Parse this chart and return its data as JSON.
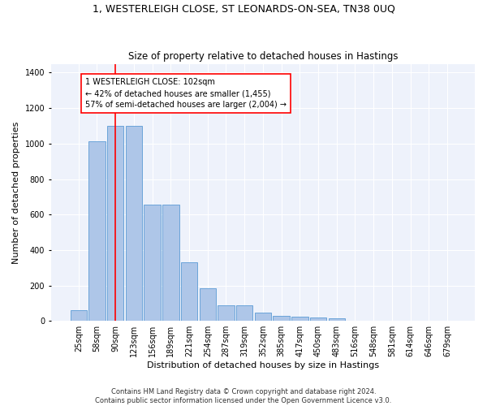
{
  "title": "1, WESTERLEIGH CLOSE, ST LEONARDS-ON-SEA, TN38 0UQ",
  "subtitle": "Size of property relative to detached houses in Hastings",
  "xlabel": "Distribution of detached houses by size in Hastings",
  "ylabel": "Number of detached properties",
  "categories": [
    "25sqm",
    "58sqm",
    "90sqm",
    "123sqm",
    "156sqm",
    "189sqm",
    "221sqm",
    "254sqm",
    "287sqm",
    "319sqm",
    "352sqm",
    "385sqm",
    "417sqm",
    "450sqm",
    "483sqm",
    "516sqm",
    "548sqm",
    "581sqm",
    "614sqm",
    "646sqm",
    "679sqm"
  ],
  "values": [
    60,
    1015,
    1100,
    1100,
    655,
    655,
    330,
    185,
    90,
    90,
    45,
    28,
    25,
    20,
    15,
    0,
    0,
    0,
    0,
    0,
    0
  ],
  "bar_color": "#aec6e8",
  "bar_edgecolor": "#5b9bd5",
  "property_line_x": 2.0,
  "property_line_color": "red",
  "annotation_text": "1 WESTERLEIGH CLOSE: 102sqm\n← 42% of detached houses are smaller (1,455)\n57% of semi-detached houses are larger (2,004) →",
  "annotation_box_color": "white",
  "annotation_box_edgecolor": "red",
  "ylim": [
    0,
    1450
  ],
  "yticks": [
    0,
    200,
    400,
    600,
    800,
    1000,
    1200,
    1400
  ],
  "background_color": "#eef2fb",
  "footer_line1": "Contains HM Land Registry data © Crown copyright and database right 2024.",
  "footer_line2": "Contains public sector information licensed under the Open Government Licence v3.0.",
  "title_fontsize": 9,
  "subtitle_fontsize": 8.5,
  "axis_label_fontsize": 8,
  "tick_fontsize": 7,
  "annotation_fontsize": 7,
  "footer_fontsize": 6
}
